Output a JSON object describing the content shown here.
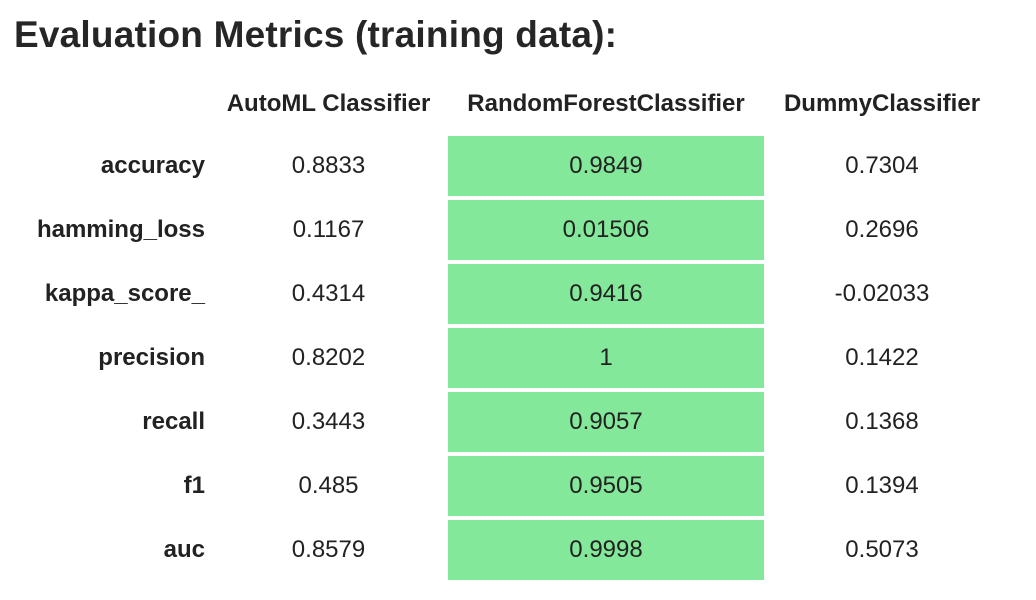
{
  "title": "Evaluation Metrics (training data):",
  "highlight_color": "#84e89a",
  "columns": [
    "AutoML Classifier",
    "RandomForestClassifier",
    "DummyClassifier"
  ],
  "rows": [
    {
      "metric": "accuracy",
      "values": [
        "0.8833",
        "0.9849",
        "0.7304"
      ]
    },
    {
      "metric": "hamming_loss",
      "values": [
        "0.1167",
        "0.01506",
        "0.2696"
      ]
    },
    {
      "metric": "kappa_score_",
      "values": [
        "0.4314",
        "0.9416",
        "-0.02033"
      ]
    },
    {
      "metric": "precision",
      "values": [
        "0.8202",
        "1",
        "0.1422"
      ]
    },
    {
      "metric": "recall",
      "values": [
        "0.3443",
        "0.9057",
        "0.1368"
      ]
    },
    {
      "metric": "f1",
      "values": [
        "0.485",
        "0.9505",
        "0.1394"
      ]
    },
    {
      "metric": "auc",
      "values": [
        "0.8579",
        "0.9998",
        "0.5073"
      ]
    }
  ],
  "highlighted_column": "RandomForestClassifier"
}
